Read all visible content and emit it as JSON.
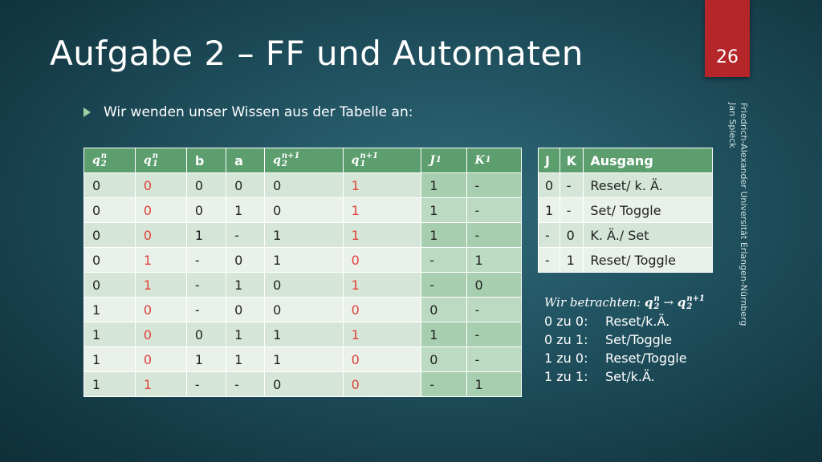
{
  "slide": {
    "title": "Aufgabe 2 – FF und Automaten",
    "page_number": "26",
    "bullet": "Wir wenden unser Wissen aus der Tabelle an:",
    "credit_line1": "Friedrich-Alexander Universität Erlangen-Nürnberg",
    "credit_line2": "Jan Spieck"
  },
  "truth_table": {
    "headers": [
      {
        "base": "q",
        "sup": "n",
        "sub": "2"
      },
      {
        "base": "q",
        "sup": "n",
        "sub": "1"
      },
      {
        "text": "b"
      },
      {
        "text": "a"
      },
      {
        "base": "q",
        "sup": "n+1",
        "sub": "2"
      },
      {
        "base": "q",
        "sup": "n+1",
        "sub": "1"
      },
      {
        "base": "J",
        "sub": "1"
      },
      {
        "base": "K",
        "sub": "1"
      }
    ],
    "rows": [
      [
        "0",
        "0",
        "0",
        "0",
        "0",
        "1",
        "1",
        "-"
      ],
      [
        "0",
        "0",
        "0",
        "1",
        "0",
        "1",
        "1",
        "-"
      ],
      [
        "0",
        "0",
        "1",
        "-",
        "1",
        "1",
        "1",
        "-"
      ],
      [
        "0",
        "1",
        "-",
        "0",
        "1",
        "0",
        "-",
        "1"
      ],
      [
        "0",
        "1",
        "-",
        "1",
        "0",
        "1",
        "-",
        "0"
      ],
      [
        "1",
        "0",
        "-",
        "0",
        "0",
        "0",
        "0",
        "-"
      ],
      [
        "1",
        "0",
        "0",
        "1",
        "1",
        "1",
        "1",
        "-"
      ],
      [
        "1",
        "0",
        "1",
        "1",
        "1",
        "0",
        "0",
        "-"
      ],
      [
        "1",
        "1",
        "-",
        "-",
        "0",
        "0",
        "-",
        "1"
      ]
    ],
    "highlight_color": "#e0433b"
  },
  "jk_table": {
    "headers": [
      "J",
      "K",
      "Ausgang"
    ],
    "rows": [
      [
        "0",
        "-",
        "Reset/ k. Ä."
      ],
      [
        "1",
        "-",
        "Set/ Toggle"
      ],
      [
        "-",
        "0",
        "K. Ä./ Set"
      ],
      [
        "-",
        "1",
        "Reset/ Toggle"
      ]
    ]
  },
  "note": {
    "heading_prefix": "Wir betrachten: ",
    "arrow": "→",
    "items": [
      {
        "key": "0 zu 0:",
        "value": "Reset/k.Ä."
      },
      {
        "key": "0 zu 1:",
        "value": "Set/Toggle"
      },
      {
        "key": "1 zu 0:",
        "value": "Reset/Toggle"
      },
      {
        "key": "1 zu 1:",
        "value": "Set/k.Ä."
      }
    ]
  },
  "colors": {
    "accent_red": "#b5262b",
    "header_green": "#5c9e6e",
    "jk_column_green": "#a8ceb0"
  }
}
